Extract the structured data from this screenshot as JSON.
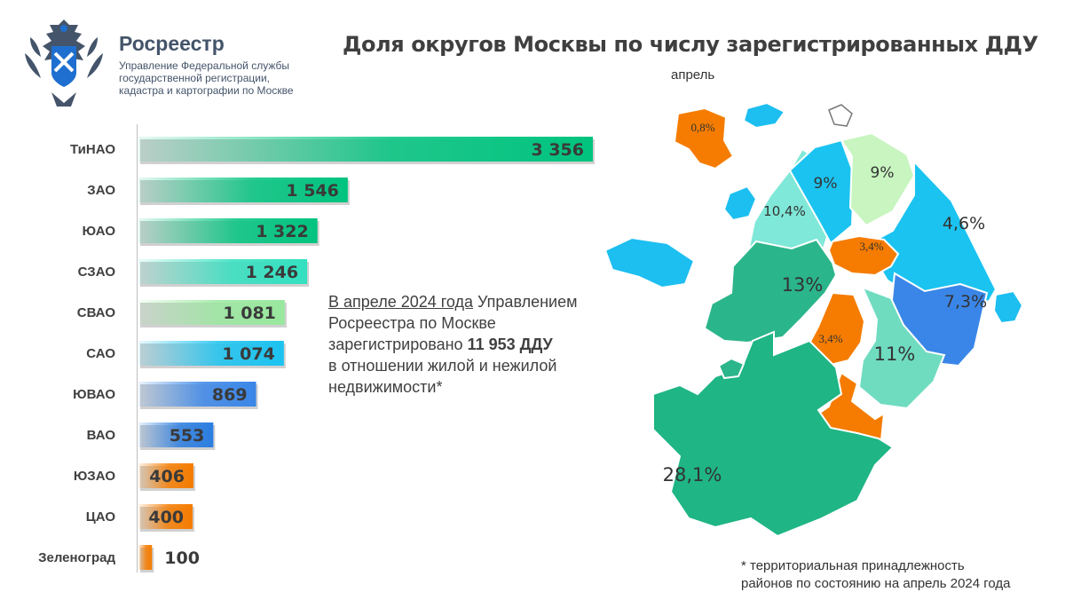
{
  "header": {
    "brand_name": "Росреестр",
    "brand_sub": [
      "Управление Федеральной службы",
      "государственной регистрации,",
      "кадастра и картографии по Москве"
    ],
    "title": "Доля округов Москвы по числу зарегистрированных ДДУ",
    "month_label": "апрель"
  },
  "note": {
    "part1": "В апреле 2024 года",
    "part2": " Управлением",
    "line2": "Росреестра по Москве",
    "line3a": "зарегистрировано ",
    "line3b": "11 953 ДДУ",
    "line4": "в отношении жилой и нежилой",
    "line5": "недвижимости*"
  },
  "footnote": [
    "* территориальная принадлежность",
    "районов по состоянию на апрель 2024 года"
  ],
  "colors": {
    "high": "#00c47f",
    "mid_mint": "#33e0c0",
    "light_green": "#99e89e",
    "cyan": "#1bc3f0",
    "blue": "#3a86e8",
    "orange": "#f57c00",
    "map_sea": "#1dbef0"
  },
  "chart_data": {
    "type": "bar",
    "orientation": "horizontal",
    "categories": [
      "ТиНАО",
      "ЗАО",
      "ЮАО",
      "СЗАО",
      "СВАО",
      "САО",
      "ЮВАО",
      "ВАО",
      "ЮЗАО",
      "ЦАО",
      "Зеленоград"
    ],
    "values": [
      3356,
      1546,
      1322,
      1246,
      1081,
      1074,
      869,
      553,
      406,
      400,
      100
    ],
    "value_labels": [
      "3 356",
      "1 546",
      "1 322",
      "1 246",
      "1 081",
      "1 074",
      "869",
      "553",
      "406",
      "400",
      "100"
    ],
    "bar_colors": [
      "#00c47f",
      "#00c47f",
      "#00c47f",
      "#33e0c0",
      "#99e89e",
      "#1bc3f0",
      "#3a86e8",
      "#2b7de0",
      "#f57c00",
      "#f57c00",
      "#f57c00"
    ],
    "map_shares": [
      {
        "label": "0,8%",
        "color": "#f57c00"
      },
      {
        "label": "9%",
        "color": "#1bc3f0"
      },
      {
        "label": "9%",
        "color": "#c8f5c0"
      },
      {
        "label": "10,4%",
        "color": "#7fe8d8"
      },
      {
        "label": "4,6%",
        "color": "#1bc3f0"
      },
      {
        "label": "3,4%",
        "color": "#f57c00"
      },
      {
        "label": "13%",
        "color": "#2bb58a"
      },
      {
        "label": "7,3%",
        "color": "#3a86e8"
      },
      {
        "label": "3,4%",
        "color": "#f57c00"
      },
      {
        "label": "11%",
        "color": "#6fdcc0"
      },
      {
        "label": "28,1%",
        "color": "#1fb585"
      }
    ]
  }
}
